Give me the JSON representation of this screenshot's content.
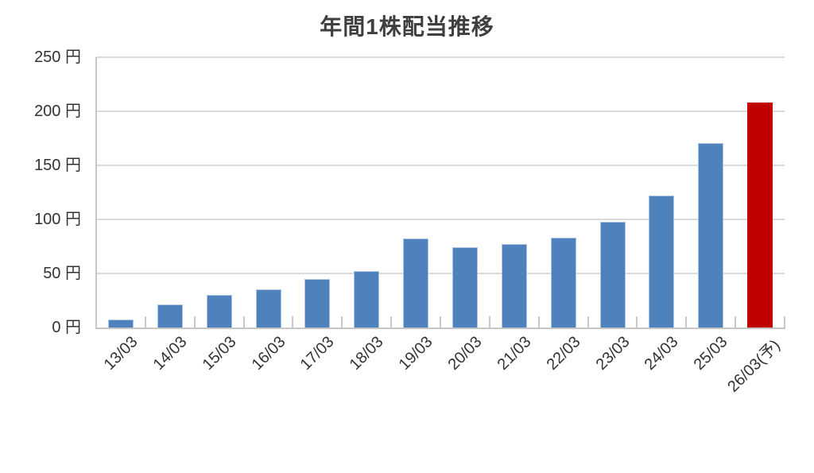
{
  "chart_data": {
    "type": "bar",
    "title": "年間1株配当推移",
    "unit": "円",
    "categories": [
      "13/03",
      "14/03",
      "15/03",
      "16/03",
      "17/03",
      "18/03",
      "19/03",
      "20/03",
      "21/03",
      "22/03",
      "23/03",
      "24/03",
      "25/03",
      "26/03(予)"
    ],
    "values": [
      7.5,
      21,
      30,
      35,
      45,
      52,
      82,
      74,
      77,
      83,
      98,
      122,
      170,
      208
    ],
    "forecast_index": 13,
    "ylim": [
      0,
      250
    ],
    "ytick_step": 50,
    "yticks": [
      0,
      50,
      100,
      150,
      200,
      250
    ],
    "ytick_labels": [
      "0 円",
      "50 円",
      "100 円",
      "150 円",
      "200 円",
      "250 円"
    ],
    "grid": true,
    "legend_position": "none",
    "xlabel": "",
    "ylabel": ""
  },
  "colors": {
    "bar": "#4f81bd",
    "bar_border": "#a9c5e5",
    "forecast_bar": "#c00000",
    "gridline": "#d9d9d9",
    "axis": "#c6c6c6",
    "title_text": "#3f3f3f",
    "label_text": "#333333",
    "background": "#ffffff"
  }
}
